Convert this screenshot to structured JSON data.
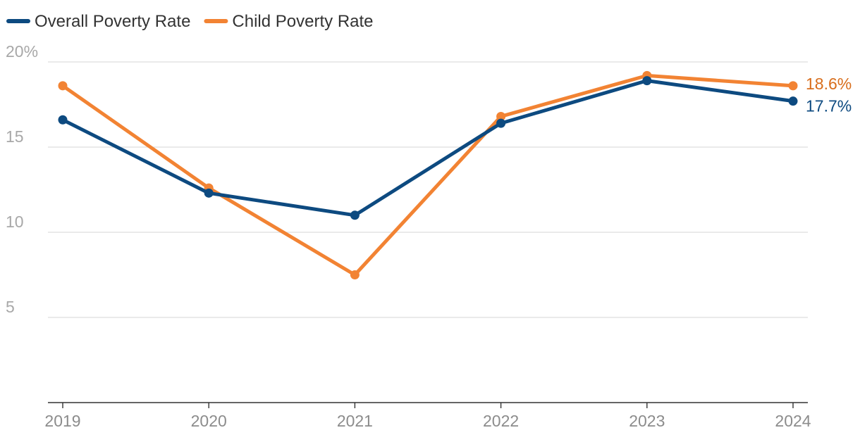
{
  "chart_data": {
    "type": "line",
    "title": "",
    "xlabel": "",
    "ylabel": "",
    "categories": [
      "2019",
      "2020",
      "2021",
      "2022",
      "2023",
      "2024"
    ],
    "ylim": [
      0,
      20
    ],
    "yticks": [
      {
        "value": 20,
        "label": "20%"
      },
      {
        "value": 15,
        "label": "15"
      },
      {
        "value": 10,
        "label": "10"
      },
      {
        "value": 5,
        "label": "5"
      }
    ],
    "grid": true,
    "legend_position": "top-left",
    "series": [
      {
        "name": "Overall Poverty Rate",
        "color": "#0d4a80",
        "label_color": "#0d4a80",
        "values": [
          16.6,
          12.3,
          11.0,
          16.4,
          18.9,
          17.7
        ],
        "end_label": "17.7%"
      },
      {
        "name": "Child Poverty Rate",
        "color": "#f28333",
        "label_color": "#d86d1b",
        "values": [
          18.6,
          12.6,
          7.5,
          16.8,
          19.2,
          18.6
        ],
        "end_label": "18.6%"
      }
    ]
  }
}
